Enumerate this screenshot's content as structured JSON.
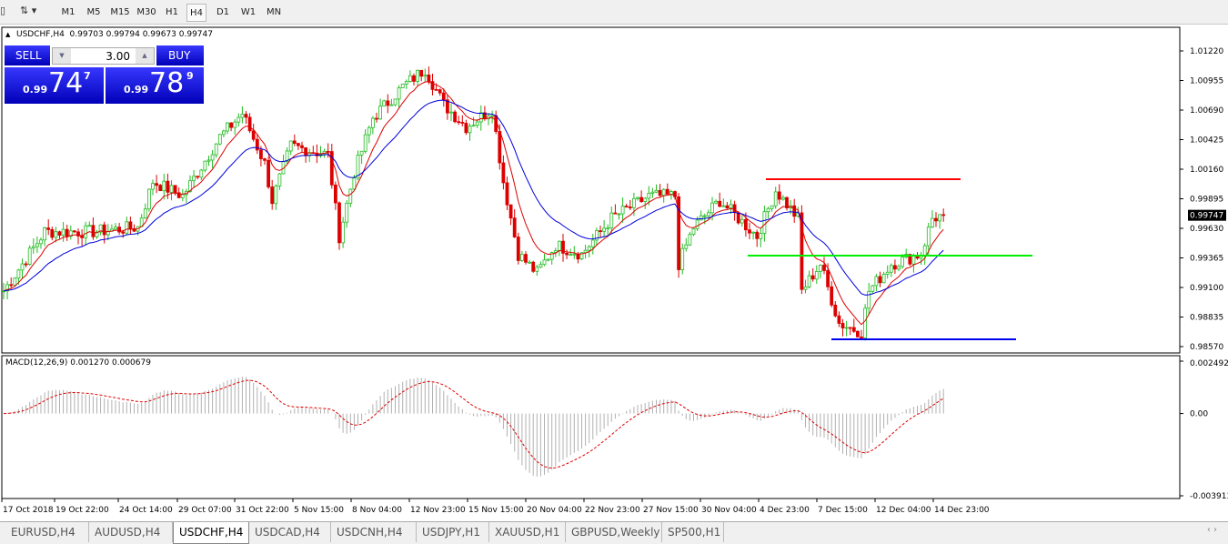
{
  "toolbar": {
    "timeframes": [
      "M1",
      "M5",
      "M15",
      "M30",
      "H1",
      "H4",
      "D1",
      "W1",
      "MN"
    ],
    "active": "H4"
  },
  "symbol_info": "USDCHF,H4  0.99703 0.99794 0.99673 0.99747",
  "trade_panel": {
    "sell_label": "SELL",
    "buy_label": "BUY",
    "lot": "3.00",
    "sell_prefix": "0.99",
    "sell_big": "74",
    "sell_sup": "7",
    "buy_prefix": "0.99",
    "buy_big": "78",
    "buy_sup": "9"
  },
  "macd_label": "MACD(12,26,9) 0.001270 0.000679",
  "colors": {
    "bull": "#22bb22",
    "bear": "#dd0000",
    "ma_fast": "#dd0000",
    "ma_slow": "#0000dd",
    "hist": "#b0b0b0",
    "signal": "#dd0000"
  },
  "chart_data": {
    "type": "candlestick",
    "symbol": "USDCHF",
    "timeframe": "H4",
    "price_axis_ticks": [
      "1.01220",
      "1.00955",
      "1.00690",
      "1.00425",
      "1.00160",
      "0.99895",
      "0.99630",
      "0.99365",
      "0.99100",
      "0.98835",
      "0.98570"
    ],
    "ylim": [
      0.9857,
      1.0122
    ],
    "current_price": "0.99747",
    "time_axis_ticks": [
      "17 Oct 2018",
      "19 Oct 22:00",
      "24 Oct 14:00",
      "29 Oct 07:00",
      "31 Oct 22:00",
      "5 Nov 15:00",
      "8 Nov 04:00",
      "12 Nov 23:00",
      "15 Nov 15:00",
      "20 Nov 04:00",
      "22 Nov 23:00",
      "27 Nov 15:00",
      "30 Nov 04:00",
      "4 Dec 23:00",
      "7 Dec 15:00",
      "12 Dec 04:00",
      "14 Dec 23:00"
    ],
    "close_path": [
      [
        0,
        0.9907
      ],
      [
        11,
        0.996
      ],
      [
        24,
        0.996
      ],
      [
        36,
        0.9964
      ],
      [
        40,
        1.0005
      ],
      [
        48,
        0.9992
      ],
      [
        58,
        1.0045
      ],
      [
        64,
        1.0066
      ],
      [
        70,
        1.0021
      ],
      [
        72,
        0.9988
      ],
      [
        77,
        1.0037
      ],
      [
        87,
        1.0029
      ],
      [
        90,
        0.9956
      ],
      [
        94,
        1.0013
      ],
      [
        99,
        1.0062
      ],
      [
        107,
        1.009
      ],
      [
        113,
        1.0106
      ],
      [
        118,
        1.0074
      ],
      [
        124,
        1.0054
      ],
      [
        131,
        1.007
      ],
      [
        134,
        1.0005
      ],
      [
        138,
        0.994
      ],
      [
        143,
        0.9923
      ],
      [
        148,
        0.9948
      ],
      [
        155,
        0.994
      ],
      [
        163,
        0.9972
      ],
      [
        173,
        0.9992
      ],
      [
        180,
        0.9992
      ],
      [
        181,
        0.9931
      ],
      [
        185,
        0.9964
      ],
      [
        192,
        0.9988
      ],
      [
        202,
        0.9956
      ],
      [
        207,
        0.9997
      ],
      [
        213,
        0.9972
      ],
      [
        214,
        0.9907
      ],
      [
        219,
        0.9931
      ],
      [
        224,
        0.9878
      ],
      [
        230,
        0.987
      ],
      [
        232,
        0.9907
      ],
      [
        238,
        0.9931
      ],
      [
        246,
        0.994
      ],
      [
        249,
        0.9972
      ],
      [
        252,
        0.99747
      ]
    ],
    "horizontal_lines": [
      {
        "price": 1.0007,
        "color": "#ff0000"
      },
      {
        "price": 0.99385,
        "color": "#00ee00"
      },
      {
        "price": 0.98635,
        "color": "#0000ee"
      }
    ],
    "macd": {
      "params": [
        12,
        26,
        9
      ],
      "value": 0.00127,
      "signal": 0.000679,
      "ticks": [
        "0.002492",
        "0.00",
        "-0.003913"
      ],
      "ylim": [
        -0.003913,
        0.002492
      ]
    }
  },
  "tabs": [
    "EURUSD,H4",
    "AUDUSD,H4",
    "USDCHF,H4",
    "USDCAD,H4",
    "USDCNH,H4",
    "USDJPY,H1",
    "XAUUSD,H1",
    "GBPUSD,Weekly",
    "SP500,H1"
  ],
  "active_tab": "USDCHF,H4"
}
